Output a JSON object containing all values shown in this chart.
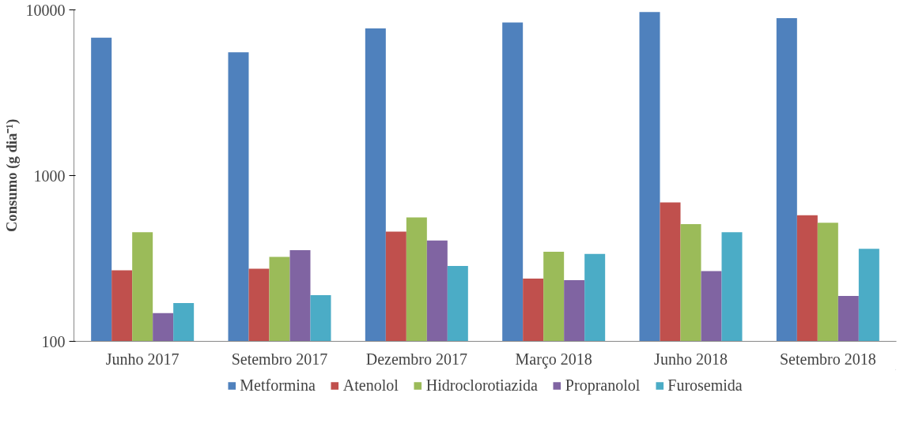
{
  "chart_data": {
    "type": "bar",
    "ylabel": "Consumo (g dia⁻¹)",
    "log": "y",
    "ylim": [
      100,
      10000
    ],
    "yticks": [
      100,
      1000,
      10000
    ],
    "grid": false,
    "legend": "bottom",
    "categories": [
      "Junho 2017",
      "Setembro 2017",
      "Dezembro 2017",
      "Março 2018",
      "Junho 2018",
      "Setembro 2018"
    ],
    "series": [
      {
        "name": "Metformina",
        "color": "#4f81bd",
        "values": [
          6800,
          5540,
          7720,
          8380,
          9690,
          8920
        ]
      },
      {
        "name": "Atenolol",
        "color": "#c0504d",
        "values": [
          268,
          274,
          459,
          239,
          689,
          577
        ]
      },
      {
        "name": "Hidroclorotiazida",
        "color": "#9bbb59",
        "values": [
          455,
          323,
          560,
          347,
          510,
          520
        ]
      },
      {
        "name": "Propranolol",
        "color": "#8064a2",
        "values": [
          148,
          355,
          406,
          234,
          265,
          188
        ]
      },
      {
        "name": "Furosemida",
        "color": "#4bacc6",
        "values": [
          170,
          190,
          285,
          337,
          455,
          362
        ]
      }
    ]
  }
}
